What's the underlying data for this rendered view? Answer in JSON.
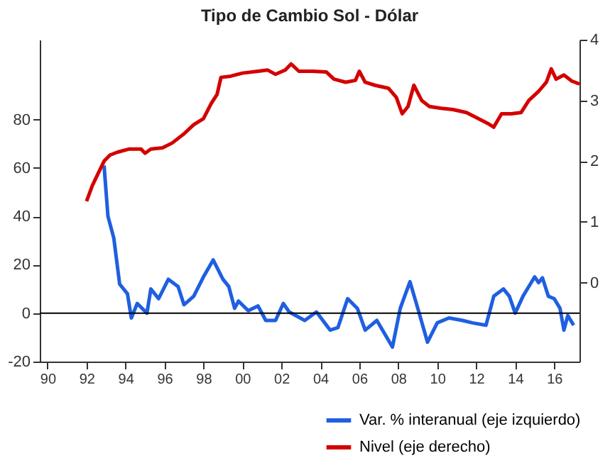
{
  "chart_data": {
    "type": "line",
    "title": "Tipo de Cambio Sol - Dólar",
    "xlim": [
      1989.6,
      2017.3
    ],
    "xticks": [
      {
        "value": 1990,
        "label": "90"
      },
      {
        "value": 1992,
        "label": "92"
      },
      {
        "value": 1994,
        "label": "94"
      },
      {
        "value": 1996,
        "label": "96"
      },
      {
        "value": 1998,
        "label": "98"
      },
      {
        "value": 2000,
        "label": "00"
      },
      {
        "value": 2002,
        "label": "02"
      },
      {
        "value": 2004,
        "label": "04"
      },
      {
        "value": 2006,
        "label": "06"
      },
      {
        "value": 2008,
        "label": "08"
      },
      {
        "value": 2010,
        "label": "10"
      },
      {
        "value": 2012,
        "label": "12"
      },
      {
        "value": 2014,
        "label": "14"
      },
      {
        "value": 2016,
        "label": "16"
      }
    ],
    "ylim": [
      -20,
      113
    ],
    "yticks": [
      -20,
      0,
      20,
      40,
      60,
      80
    ],
    "y2lim": [
      -1.3,
      4
    ],
    "y2ticks": [
      0,
      1,
      2,
      3,
      4
    ],
    "grid": false,
    "legend": "bottom right",
    "line_style": "solid",
    "marker": "none",
    "ref_lines": [
      {
        "axis": "y",
        "value": 0,
        "color": "#000000"
      }
    ],
    "series": [
      {
        "name": "Var. % interanual (eje izquierdo)",
        "color": "#1f5fe0",
        "axis": "y",
        "x": [
          1992.9,
          1993.1,
          1993.4,
          1993.7,
          1994.1,
          1994.3,
          1994.6,
          1995.1,
          1995.3,
          1995.7,
          1996.2,
          1996.7,
          1997.0,
          1997.5,
          1998.0,
          1998.5,
          1999.0,
          1999.3,
          1999.6,
          1999.8,
          2000.3,
          2000.8,
          2001.2,
          2001.7,
          2002.1,
          2002.4,
          2003.2,
          2003.8,
          2004.5,
          2004.9,
          2005.4,
          2005.9,
          2006.3,
          2006.9,
          2007.7,
          2008.1,
          2008.6,
          2009.0,
          2009.5,
          2010.0,
          2010.6,
          2011.3,
          2011.8,
          2012.5,
          2012.9,
          2013.4,
          2013.7,
          2014.0,
          2014.4,
          2015.0,
          2015.2,
          2015.4,
          2015.7,
          2016.0,
          2016.3,
          2016.5,
          2016.7,
          2017.0
        ],
        "values": [
          61,
          40,
          31,
          12,
          8,
          -2,
          4,
          0,
          10,
          6,
          14,
          11,
          3.5,
          7,
          15,
          22,
          14,
          11,
          2,
          5,
          1,
          3,
          -3,
          -3,
          4,
          0.5,
          -3,
          0.5,
          -7,
          -6,
          6,
          2,
          -7,
          -3,
          -14,
          2,
          13,
          2,
          -12,
          -4,
          -2,
          -3,
          -4,
          -5,
          7,
          10,
          7,
          0,
          7,
          15,
          12.6,
          14.6,
          7,
          6,
          2,
          -7,
          -1,
          -5
        ]
      },
      {
        "name": "Nivel (eje derecho)",
        "color": "#d40000",
        "axis": "y2",
        "x": [
          1992.0,
          1992.3,
          1992.6,
          1992.9,
          1993.2,
          1993.6,
          1994.2,
          1994.8,
          1995.0,
          1995.3,
          1995.9,
          1996.4,
          1997.0,
          1997.5,
          1998.0,
          1998.4,
          1998.7,
          1998.9,
          1999.4,
          2000.0,
          2000.8,
          2001.3,
          2001.7,
          2002.2,
          2002.5,
          2002.9,
          2003.6,
          2004.3,
          2004.7,
          2005.3,
          2005.8,
          2006.0,
          2006.3,
          2006.8,
          2007.5,
          2007.9,
          2008.2,
          2008.5,
          2008.8,
          2009.2,
          2009.6,
          2010.2,
          2010.8,
          2011.5,
          2012.0,
          2012.6,
          2012.9,
          2013.3,
          2013.8,
          2014.3,
          2014.7,
          2015.2,
          2015.6,
          2015.85,
          2016.1,
          2016.5,
          2016.9,
          2017.3
        ],
        "values": [
          1.34,
          1.6,
          1.8,
          2.0,
          2.1,
          2.15,
          2.2,
          2.2,
          2.13,
          2.2,
          2.22,
          2.3,
          2.45,
          2.6,
          2.7,
          2.95,
          3.1,
          3.38,
          3.4,
          3.45,
          3.48,
          3.5,
          3.43,
          3.5,
          3.6,
          3.48,
          3.48,
          3.47,
          3.35,
          3.3,
          3.33,
          3.48,
          3.3,
          3.25,
          3.2,
          3.05,
          2.78,
          2.9,
          3.25,
          3.0,
          2.9,
          2.87,
          2.85,
          2.8,
          2.72,
          2.62,
          2.56,
          2.78,
          2.78,
          2.8,
          3.0,
          3.15,
          3.3,
          3.52,
          3.35,
          3.42,
          3.32,
          3.27
        ]
      }
    ]
  }
}
